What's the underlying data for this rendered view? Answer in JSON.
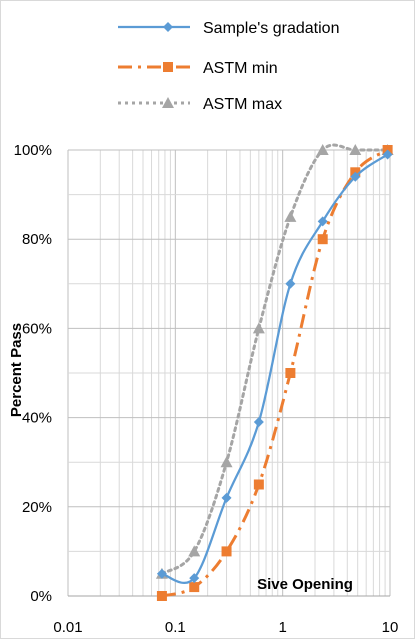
{
  "chart_data": {
    "type": "line",
    "x_scale": "log",
    "xlim": [
      0.01,
      10
    ],
    "ylim": [
      0,
      100
    ],
    "x_tick_labels": [
      "0.01",
      "0.1",
      "1",
      "10"
    ],
    "y_tick_labels": [
      "0%",
      "20%",
      "40%",
      "60%",
      "80%",
      "100%"
    ],
    "xlabel": "Sive Opening",
    "ylabel": "Percent Pass",
    "grid": true,
    "legend_position": "top",
    "series": [
      {
        "name": "Sample's gradation",
        "color": "#5b9bd5",
        "marker": "diamond",
        "line_style": "solid",
        "x": [
          0.075,
          0.15,
          0.3,
          0.6,
          1.18,
          2.36,
          4.75,
          9.5
        ],
        "y": [
          5,
          4,
          22,
          39,
          70,
          84,
          94,
          99
        ]
      },
      {
        "name": "ASTM min",
        "color": "#ed7d31",
        "marker": "square",
        "line_style": "dash-dot",
        "x": [
          0.075,
          0.15,
          0.3,
          0.6,
          1.18,
          2.36,
          4.75,
          9.5
        ],
        "y": [
          0,
          2,
          10,
          25,
          50,
          80,
          95,
          100
        ]
      },
      {
        "name": "ASTM max",
        "color": "#a5a5a5",
        "marker": "triangle",
        "line_style": "dotted",
        "x": [
          0.075,
          0.15,
          0.3,
          0.6,
          1.18,
          2.36,
          4.75,
          9.5
        ],
        "y": [
          5,
          10,
          30,
          60,
          85,
          100,
          100,
          100
        ]
      }
    ]
  }
}
